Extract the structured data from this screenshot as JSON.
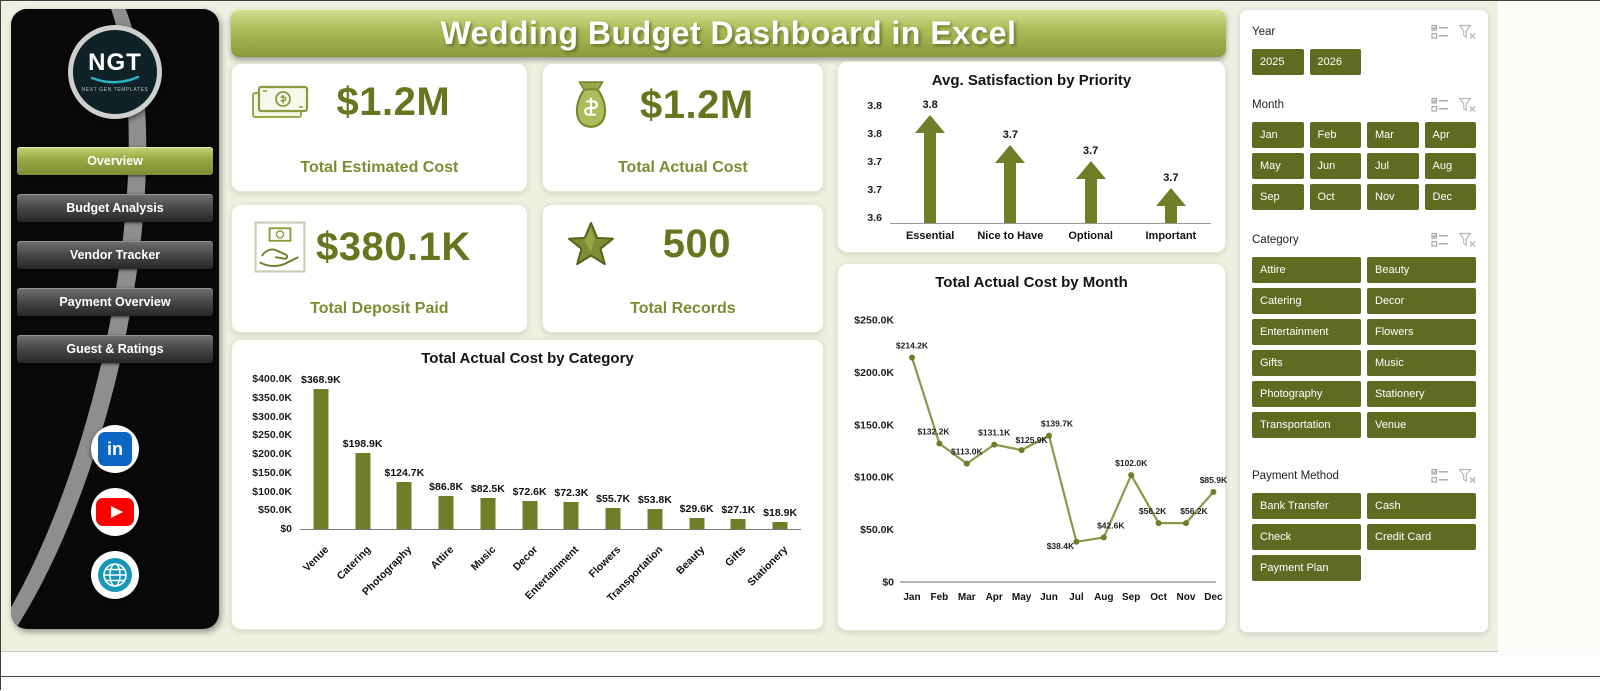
{
  "colors": {
    "accent": "#7d8d33",
    "accent_dark": "#5e6c21",
    "bar": "#6f7f27",
    "banner_top": "#d6e094",
    "banner_bottom": "#8a9a3d",
    "background": "#eef1e1",
    "sidebar": "#090909",
    "linkedin": "#0a66c2",
    "youtube": "#ff0000",
    "globe": "#1797b8"
  },
  "banner": {
    "title": "Wedding Budget Dashboard in Excel"
  },
  "sidebar": {
    "logo": {
      "text": "NGT",
      "subtext": "NEXT GEN TEMPLATES"
    },
    "nav": [
      {
        "label": "Overview",
        "active": true
      },
      {
        "label": "Budget Analysis",
        "active": false
      },
      {
        "label": "Vendor Tracker",
        "active": false
      },
      {
        "label": "Payment Overview",
        "active": false
      },
      {
        "label": "Guest & Ratings",
        "active": false
      }
    ],
    "social": [
      {
        "name": "linkedin-icon"
      },
      {
        "name": "youtube-icon"
      },
      {
        "name": "globe-icon"
      }
    ]
  },
  "kpis": [
    {
      "icon": "cash-icon",
      "value": "$1.2M",
      "label": "Total Estimated Cost"
    },
    {
      "icon": "money-bag-icon",
      "value": "$1.2M",
      "label": "Total Actual Cost"
    },
    {
      "icon": "deposit-icon",
      "value": "$380.1K",
      "label": "Total Deposit Paid"
    },
    {
      "icon": "star-icon",
      "value": "500",
      "label": "Total Records"
    }
  ],
  "chart_data": [
    {
      "type": "bar",
      "title": "Total Actual Cost by Category",
      "categories": [
        "Venue",
        "Catering",
        "Photography",
        "Attire",
        "Music",
        "Decor",
        "Entertainment",
        "Flowers",
        "Transportation",
        "Beauty",
        "Gifts",
        "Stationery"
      ],
      "values": [
        368.9,
        198.9,
        124.7,
        86.8,
        82.5,
        72.6,
        72.3,
        55.7,
        53.8,
        29.6,
        27.1,
        18.9
      ],
      "data_labels": [
        "$368.9K",
        "$198.9K",
        "$124.7K",
        "$86.8K",
        "$82.5K",
        "$72.6K",
        "$72.3K",
        "$55.7K",
        "$53.8K",
        "$29.6K",
        "$27.1K",
        "$18.9K"
      ],
      "ylabels": [
        "$400.0K",
        "$350.0K",
        "$300.0K",
        "$250.0K",
        "$200.0K",
        "$150.0K",
        "$100.0K",
        "$50.0K",
        "$0"
      ],
      "ylim": [
        0,
        400
      ],
      "unit": "K USD",
      "grid": false,
      "legend": false
    },
    {
      "type": "bar",
      "title": "Avg. Satisfaction by Priority",
      "categories": [
        "Essential",
        "Nice to Have",
        "Optional",
        "Important"
      ],
      "values": [
        3.8,
        3.7,
        3.7,
        3.7
      ],
      "estimated_values": [
        3.8,
        3.745,
        3.715,
        3.665
      ],
      "data_labels": [
        "3.8",
        "3.7",
        "3.7",
        "3.7"
      ],
      "ylabels": [
        "3.8",
        "3.8",
        "3.7",
        "3.7",
        "3.6"
      ],
      "ylim": [
        3.6,
        3.8
      ],
      "marker": "arrow-up",
      "grid": false,
      "legend": false
    },
    {
      "type": "line",
      "title": "Total Actual Cost by Month",
      "categories": [
        "Jan",
        "Feb",
        "Mar",
        "Apr",
        "May",
        "Jun",
        "Jul",
        "Aug",
        "Sep",
        "Oct",
        "Nov",
        "Dec"
      ],
      "values": [
        214.2,
        132.2,
        113.0,
        131.1,
        125.9,
        139.7,
        38.4,
        42.6,
        102.0,
        56.2,
        56.2,
        85.9
      ],
      "data_labels": [
        "$214.2K",
        "$132.2K",
        "$113.0K",
        "$131.1K",
        "$125.9K",
        "$139.7K",
        "$38.4K",
        "$42.6K",
        "$102.0K",
        "$56.2K",
        "$56.2K",
        "$85.9K"
      ],
      "ylabels": [
        "$250.0K",
        "$200.0K",
        "$150.0K",
        "$100.0K",
        "$50.0K",
        "$0"
      ],
      "ylim": [
        0,
        250
      ],
      "unit": "K USD",
      "grid": false,
      "legend": false
    }
  ],
  "slicers": [
    {
      "title": "Year",
      "columns": 4,
      "items": [
        "2025",
        "2026"
      ]
    },
    {
      "title": "Month",
      "columns": 4,
      "items": [
        "Jan",
        "Feb",
        "Mar",
        "Apr",
        "May",
        "Jun",
        "Jul",
        "Aug",
        "Sep",
        "Oct",
        "Nov",
        "Dec"
      ]
    },
    {
      "title": "Category",
      "columns": 2,
      "items": [
        "Attire",
        "Beauty",
        "Catering",
        "Decor",
        "Entertainment",
        "Flowers",
        "Gifts",
        "Music",
        "Photography",
        "Stationery",
        "Transportation",
        "Venue"
      ]
    },
    {
      "title": "Payment Method",
      "columns": 2,
      "items": [
        "Bank Transfer",
        "Cash",
        "Check",
        "Credit Card",
        "Payment Plan"
      ]
    }
  ]
}
